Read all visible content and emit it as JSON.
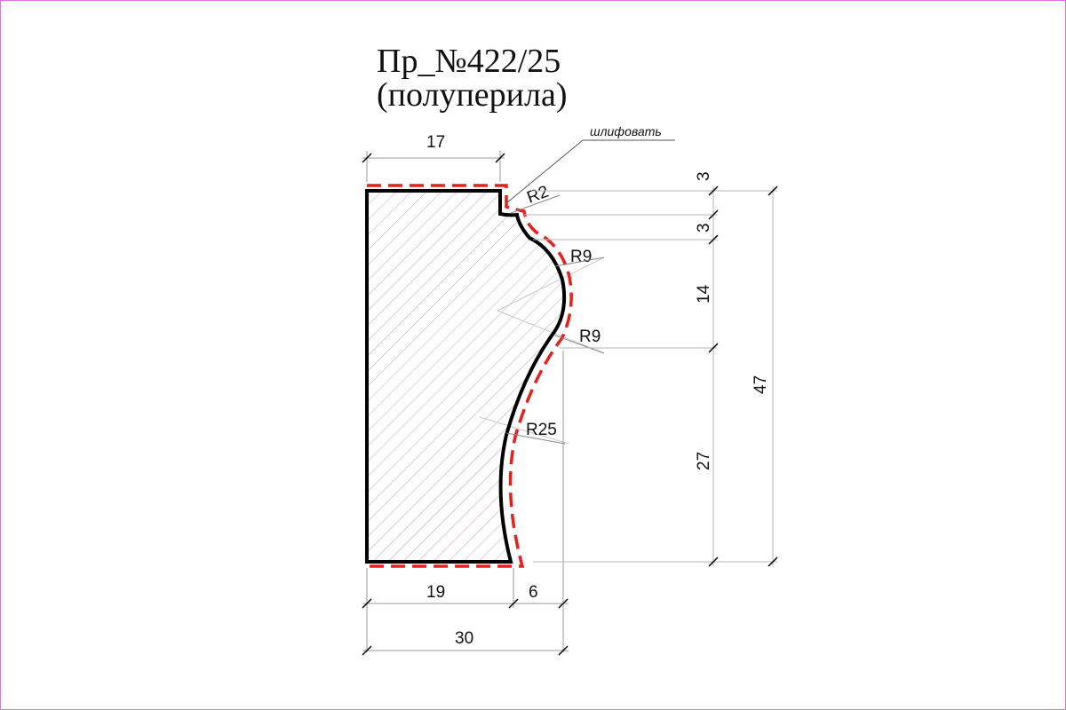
{
  "title": "Пр_№422/25",
  "subtitle": "(полуперила)",
  "note": "шлифовать",
  "radii": {
    "r_top": "R2",
    "r_upper": "R9",
    "r_lower": "R9",
    "r_big": "R25"
  },
  "dims_top": {
    "width_top": "17"
  },
  "dims_bottom": {
    "base": "19",
    "offset": "6",
    "total": "30"
  },
  "dims_right": {
    "d1": "3",
    "d2": "3",
    "d3": "14",
    "d4": "27",
    "total": "47"
  },
  "colors": {
    "profile": "#000000",
    "finish_line": "#e8201c",
    "hatch": "#c9a0a0",
    "dim_line": "#9a9a9a",
    "frame": "#e070e0"
  }
}
